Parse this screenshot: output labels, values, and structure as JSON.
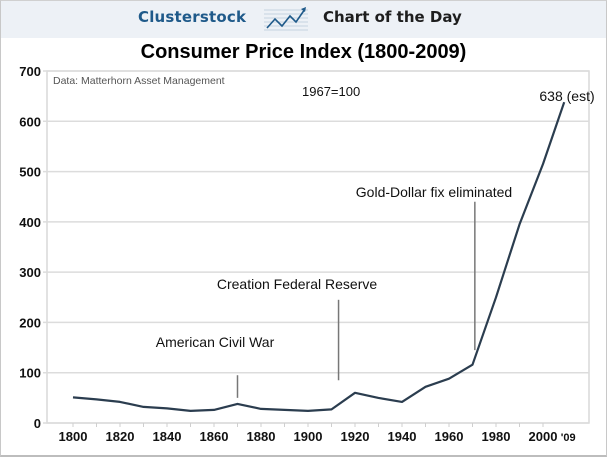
{
  "banner": {
    "brand": "Clusterstock",
    "logo_icon": "rising-chart-icon",
    "subtitle": "Chart of the Day",
    "colors": {
      "brand": "#1f5a8a",
      "background": "#edf1f6"
    }
  },
  "chart_data": {
    "type": "line",
    "title": "Consumer Price Index (1800-2009)",
    "xlabel": "",
    "ylabel": "",
    "source_note": "Data: Matterhorn Asset Management",
    "base_note": "1967=100",
    "xlim": [
      1800,
      2009
    ],
    "ylim": [
      0,
      700
    ],
    "grid": true,
    "legend": "none",
    "line_color": "#2b3d4f",
    "x_ticks": [
      1800,
      1820,
      1840,
      1860,
      1880,
      1900,
      1920,
      1940,
      1960,
      1980,
      2000,
      2009
    ],
    "x_tick_labels": [
      "1800",
      "1820",
      "1840",
      "1860",
      "1880",
      "1900",
      "1920",
      "1940",
      "1960",
      "1980",
      "2000",
      "'09"
    ],
    "y_ticks": [
      0,
      100,
      200,
      300,
      400,
      500,
      600,
      700
    ],
    "y_tick_labels": [
      "0",
      "100",
      "200",
      "300",
      "400",
      "500",
      "600",
      "700"
    ],
    "series": [
      {
        "name": "CPI",
        "x": [
          1800,
          1810,
          1820,
          1830,
          1840,
          1850,
          1860,
          1870,
          1880,
          1890,
          1900,
          1910,
          1920,
          1930,
          1940,
          1950,
          1960,
          1970,
          1980,
          1990,
          2000,
          2009
        ],
        "values": [
          51,
          47,
          42,
          32,
          29,
          24,
          26,
          38,
          28,
          26,
          24,
          27,
          60,
          50,
          42,
          72,
          88,
          116,
          250,
          395,
          515,
          638
        ]
      }
    ],
    "annotations": [
      {
        "text": "American Civil War",
        "x": 1870,
        "line_from": 50,
        "line_to": 95
      },
      {
        "text": "Creation Federal Reserve",
        "x": 1913,
        "line_from": 85,
        "line_to": 245
      },
      {
        "text": "Gold-Dollar fix eliminated",
        "x": 1971,
        "line_from": 145,
        "line_to": 440
      },
      {
        "text": "638 (est)",
        "x": 2009,
        "y": 638
      }
    ]
  }
}
